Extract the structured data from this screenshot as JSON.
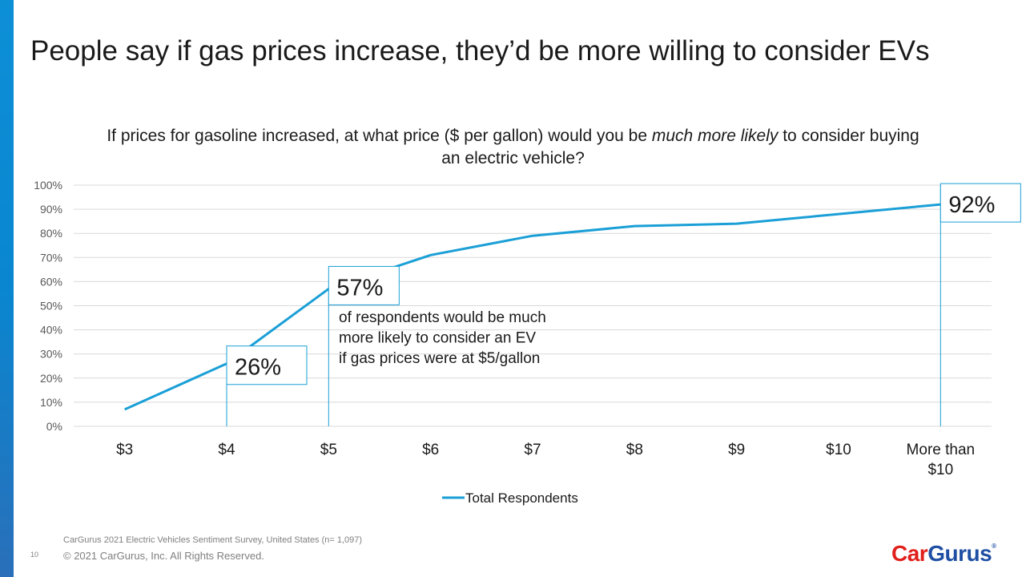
{
  "slide": {
    "title": "People say if gas prices increase, they’d be more willing to consider EVs",
    "page_number": "10"
  },
  "chart_title": {
    "before": "If prices for gasoline increased, at what price ($ per gallon) would you be ",
    "emphasis": "much more likely",
    "after": " to consider buying an electric vehicle?"
  },
  "annotation": {
    "lines": [
      "of respondents would be much",
      "more likely to consider an EV",
      "if gas prices were at $5/gallon"
    ]
  },
  "footer": {
    "source": "CarGurus 2021 Electric Vehicles Sentiment Survey, United States (n= 1,097)",
    "copyright": "© 2021 CarGurus, Inc.  All Rights Reserved."
  },
  "logo": {
    "part1": "Car",
    "part2": "Gurus",
    "mark": "®"
  },
  "colors": {
    "line": "#1a9fd6",
    "callout_border": "#1a9fd6",
    "grid": "#d9d9d9",
    "axis_text": "#595959"
  },
  "chart_data": {
    "type": "line",
    "categories": [
      "$3",
      "$4",
      "$5",
      "$6",
      "$7",
      "$8",
      "$9",
      "$10",
      "More than $10"
    ],
    "series": [
      {
        "name": "Total Respondents",
        "values": [
          7,
          26,
          57,
          71,
          79,
          83,
          84,
          88,
          92
        ]
      }
    ],
    "ylim": [
      0,
      100
    ],
    "yticks": [
      "0%",
      "10%",
      "20%",
      "30%",
      "40%",
      "50%",
      "60%",
      "70%",
      "80%",
      "90%",
      "100%"
    ],
    "grid": true,
    "legend": "bottom",
    "callouts": [
      {
        "category": "$4",
        "label": "26%"
      },
      {
        "category": "$5",
        "label": "57%"
      },
      {
        "category": "More than $10",
        "label": "92%"
      }
    ]
  }
}
